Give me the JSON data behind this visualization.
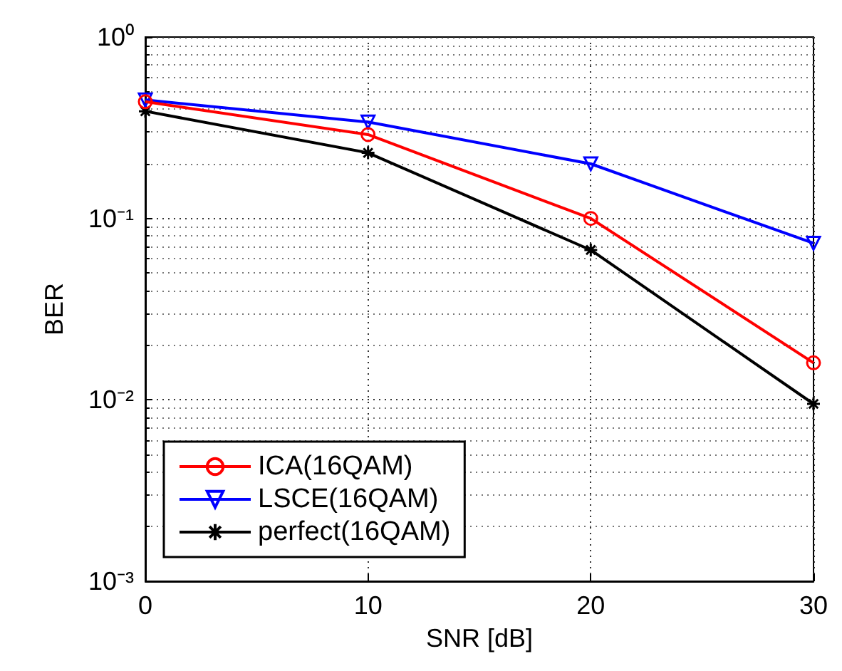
{
  "chart_data": {
    "type": "line",
    "xlabel": "SNR [dB]",
    "ylabel": "BER",
    "x": [
      0,
      10,
      20,
      30
    ],
    "series": [
      {
        "name": "ICA(16QAM)",
        "color": "#ff0000",
        "marker": "circle",
        "values": [
          0.44,
          0.29,
          0.1,
          0.016
        ]
      },
      {
        "name": "LSCE(16QAM)",
        "color": "#0000ff",
        "marker": "triangle",
        "values": [
          0.45,
          0.34,
          0.2,
          0.073
        ]
      },
      {
        "name": "perfect(16QAM)",
        "color": "#000000",
        "marker": "cross",
        "values": [
          0.39,
          0.23,
          0.067,
          0.0095
        ]
      }
    ],
    "log": "y",
    "xlim": [
      0,
      30
    ],
    "xticks": [
      0,
      10,
      20,
      30
    ],
    "ylim": [
      0.001,
      1
    ],
    "yticks": [
      {
        "value": 0.001,
        "label": "10⁻³"
      },
      {
        "value": 0.01,
        "label": "10⁻²"
      },
      {
        "value": 0.1,
        "label": "10⁻¹"
      },
      {
        "value": 1,
        "label": "10⁰"
      }
    ],
    "grid": true,
    "legend": "bottom left",
    "line_style": "solid"
  }
}
